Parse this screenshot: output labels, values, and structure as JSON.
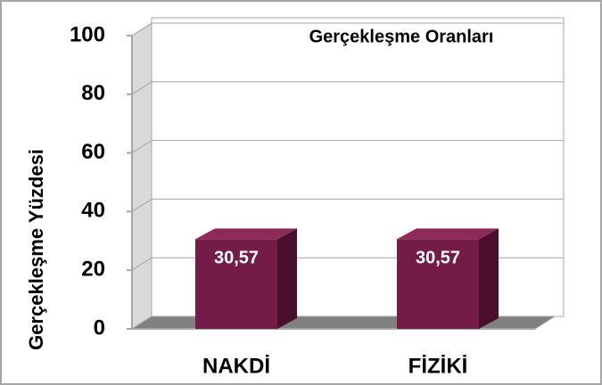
{
  "chart_data": {
    "type": "bar",
    "title": "Gerçekleşme Oranları",
    "y_label": "Gerçekleşme Yüzdesi",
    "categories": [
      "NAKDİ",
      "FİZİKİ"
    ],
    "values": [
      30.57,
      30.57
    ],
    "value_labels": [
      "30,57",
      "30,57"
    ],
    "color": "#741c47",
    "ylim": [
      0,
      100
    ],
    "yticks": [
      0,
      20,
      40,
      60,
      80,
      100
    ],
    "grid": true
  }
}
